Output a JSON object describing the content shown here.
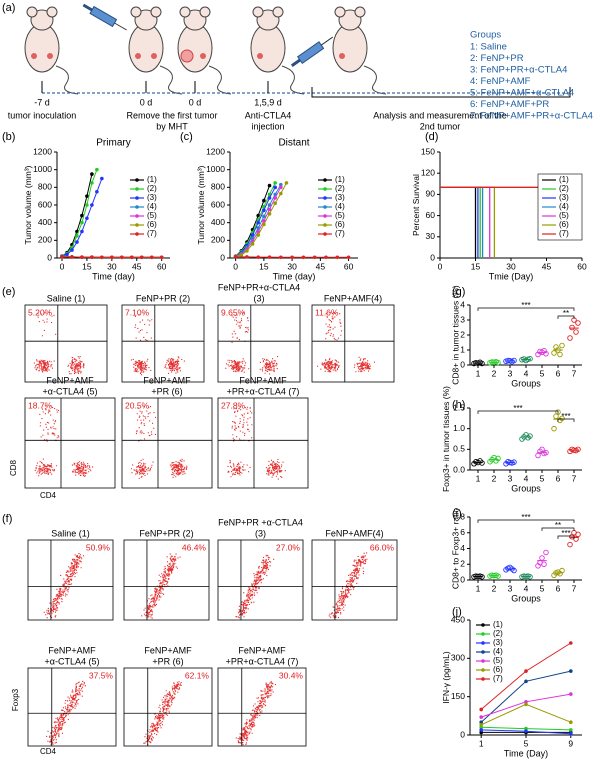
{
  "panel_a": {
    "label": "(a)",
    "timeline": [
      {
        "day": "-7 d",
        "lines": [
          "tumor inoculation"
        ]
      },
      {
        "day": "0 d"
      },
      {
        "day": "0 d"
      },
      {
        "day": "1,5,9 d",
        "lines": [
          "Anti-CTLA4",
          "injection"
        ]
      }
    ],
    "removal": [
      "Remove the first tumor",
      "by MHT"
    ],
    "analysis": [
      "Analysis and measurement of the",
      "2nd tumor"
    ],
    "groups_title": "Groups",
    "groups": [
      "1: Saline",
      "2: FeNP+PR",
      "3: FeNP+PR+α-CTLA4",
      "4: FeNP+AMF",
      "5: FeNP+AMF+α-CTLA4",
      "6: FeNP+AMF+PR",
      "7: FeNP+AMF+PR+α-CTLA4"
    ]
  },
  "flow_e": {
    "label": "(e)",
    "y_label": "CD8",
    "x_label": "CD4",
    "plots": [
      {
        "lines": [
          "Saline (1)"
        ],
        "percent": "5.20%"
      },
      {
        "lines": [
          "FeNP+PR (2)"
        ],
        "percent": "7.10%"
      },
      {
        "lines": [
          "FeNP+PR+α-CTLA4",
          "(3)"
        ],
        "percent": "9.65%"
      },
      {
        "lines": [
          "FeNP+AMF(4)"
        ],
        "percent": "11.6%"
      },
      {
        "lines": [
          "FeNP+AMF",
          "+α-CTLA4 (5)"
        ],
        "percent": "18.7%"
      },
      {
        "lines": [
          "FeNP+AMF",
          "+PR (6)"
        ],
        "percent": "20.5%"
      },
      {
        "lines": [
          "FeNP+AMF",
          "+PR+α-CTLA4 (7)"
        ],
        "percent": "27.8%"
      }
    ]
  },
  "flow_f": {
    "label": "(f)",
    "y_label": "Foxp3",
    "x_label": "CD4",
    "plots": [
      {
        "lines": [
          "Saline (1)"
        ],
        "percent": "50.9%"
      },
      {
        "lines": [
          "FeNP+PR (2)"
        ],
        "percent": "46.4%"
      },
      {
        "lines": [
          "FeNP+PR +α-CTLA4",
          "(3)"
        ],
        "percent": "27.0%"
      },
      {
        "lines": [
          "FeNP+AMF(4)"
        ],
        "percent": "66.0%"
      },
      {
        "lines": [
          "FeNP+AMF",
          "+α-CTLA4 (5)"
        ],
        "percent": "37.5%"
      },
      {
        "lines": [
          "FeNP+AMF",
          "+PR (6)"
        ],
        "percent": "62.1%"
      },
      {
        "lines": [
          "FeNP+AMF",
          "+PR+α-CTLA4 (7)"
        ],
        "percent": "30.4%"
      }
    ]
  },
  "chart_data": [
    {
      "type": "line",
      "label": "(b)",
      "title": "Primary",
      "x_label": "Time (day)",
      "y_label": "Tumor volume (mm³)",
      "xlim": [
        -3,
        65
      ],
      "xticks": [
        0,
        15,
        30,
        45,
        60
      ],
      "ylim": [
        0,
        1200
      ],
      "yticks": [
        0,
        200,
        400,
        600,
        800,
        1000,
        1200
      ],
      "markers": true,
      "legend": "right",
      "series": [
        {
          "name": "(1)",
          "color": "#000000",
          "x": [
            0,
            3,
            6,
            9,
            12,
            15,
            18
          ],
          "values": [
            20,
            60,
            150,
            300,
            480,
            700,
            950
          ]
        },
        {
          "name": "(2)",
          "color": "#22cc22",
          "x": [
            0,
            3,
            6,
            9,
            12,
            15,
            18,
            21
          ],
          "values": [
            20,
            50,
            120,
            250,
            400,
            600,
            850,
            1000
          ]
        },
        {
          "name": "(3)",
          "color": "#2233ff",
          "x": [
            0,
            3,
            6,
            9,
            12,
            15,
            18,
            21,
            24
          ],
          "values": [
            20,
            40,
            90,
            180,
            300,
            450,
            600,
            750,
            900
          ]
        },
        {
          "name": "(4)",
          "color": "#2288cc",
          "x": [
            0,
            6,
            12,
            18,
            24,
            30,
            36,
            42,
            48,
            54,
            60
          ],
          "values": [
            15,
            12,
            10,
            10,
            8,
            8,
            8,
            8,
            8,
            8,
            8
          ]
        },
        {
          "name": "(5)",
          "color": "#dd33dd",
          "x": [
            0,
            6,
            12,
            18,
            24,
            30,
            36,
            42,
            48,
            54,
            60
          ],
          "values": [
            15,
            12,
            10,
            10,
            8,
            8,
            8,
            8,
            8,
            8,
            8
          ]
        },
        {
          "name": "(6)",
          "color": "#999900",
          "x": [
            0,
            6,
            12,
            18,
            24,
            30,
            36,
            42,
            48,
            54,
            60
          ],
          "values": [
            15,
            12,
            10,
            10,
            8,
            8,
            8,
            8,
            8,
            8,
            8
          ]
        },
        {
          "name": "(7)",
          "color": "#dd2222",
          "x": [
            0,
            6,
            12,
            18,
            24,
            30,
            36,
            42,
            48,
            54,
            60
          ],
          "values": [
            15,
            12,
            10,
            10,
            8,
            8,
            8,
            8,
            8,
            8,
            8
          ]
        }
      ]
    },
    {
      "type": "line",
      "label": "(c)",
      "title": "Distant",
      "x_label": "Time (day)",
      "y_label": "Tumor volume (mm³)",
      "xlim": [
        -3,
        65
      ],
      "xticks": [
        0,
        15,
        30,
        45,
        60
      ],
      "ylim": [
        0,
        1200
      ],
      "yticks": [
        0,
        200,
        400,
        600,
        800,
        1000,
        1200
      ],
      "markers": true,
      "legend": "right",
      "series": [
        {
          "name": "(1)",
          "color": "#000000",
          "x": [
            0,
            3,
            6,
            9,
            12,
            15,
            18
          ],
          "values": [
            20,
            80,
            180,
            320,
            480,
            650,
            820
          ]
        },
        {
          "name": "(2)",
          "color": "#22cc22",
          "x": [
            0,
            3,
            6,
            9,
            12,
            15,
            18,
            21
          ],
          "values": [
            20,
            70,
            160,
            290,
            430,
            580,
            720,
            850
          ]
        },
        {
          "name": "(3)",
          "color": "#2233ff",
          "x": [
            0,
            3,
            6,
            9,
            12,
            15,
            18,
            21
          ],
          "values": [
            20,
            60,
            140,
            260,
            400,
            540,
            680,
            800
          ]
        },
        {
          "name": "(4)",
          "color": "#2288cc",
          "x": [
            0,
            3,
            6,
            9,
            12,
            15,
            18,
            21,
            24
          ],
          "values": [
            20,
            50,
            120,
            220,
            340,
            470,
            600,
            720,
            830
          ]
        },
        {
          "name": "(5)",
          "color": "#dd33dd",
          "x": [
            0,
            3,
            6,
            9,
            12,
            15,
            18,
            21,
            24
          ],
          "values": [
            20,
            40,
            100,
            190,
            300,
            420,
            550,
            680,
            800
          ]
        },
        {
          "name": "(6)",
          "color": "#999900",
          "x": [
            0,
            3,
            6,
            9,
            12,
            15,
            18,
            21,
            24,
            27
          ],
          "values": [
            20,
            30,
            80,
            160,
            260,
            380,
            500,
            620,
            730,
            850
          ]
        },
        {
          "name": "(7)",
          "color": "#dd2222",
          "x": [
            0,
            6,
            12,
            18,
            24,
            30,
            36,
            42,
            48,
            54,
            60
          ],
          "values": [
            15,
            12,
            10,
            10,
            8,
            8,
            8,
            8,
            8,
            8,
            8
          ]
        }
      ]
    },
    {
      "type": "line",
      "label": "(d)",
      "x_label": "Tmie (Day)",
      "y_label": "Percent Survival",
      "xlim": [
        0,
        60
      ],
      "xticks": [
        0,
        15,
        30,
        45,
        60
      ],
      "ylim": [
        0,
        150
      ],
      "yticks": [
        0,
        30,
        60,
        90,
        120,
        150
      ],
      "markers": false,
      "legend": "right",
      "legend_box": true,
      "series": [
        {
          "name": "(1)",
          "color": "#000000",
          "x": [
            0,
            15,
            15
          ],
          "values": [
            100,
            100,
            0
          ]
        },
        {
          "name": "(2)",
          "color": "#22cc22",
          "x": [
            0,
            17,
            17
          ],
          "values": [
            100,
            100,
            0
          ]
        },
        {
          "name": "(3)",
          "color": "#2233ff",
          "x": [
            0,
            16,
            16
          ],
          "values": [
            100,
            100,
            0
          ]
        },
        {
          "name": "(4)",
          "color": "#2288cc",
          "x": [
            0,
            18,
            18
          ],
          "values": [
            100,
            100,
            0
          ]
        },
        {
          "name": "(5)",
          "color": "#dd33dd",
          "x": [
            0,
            21,
            21
          ],
          "values": [
            100,
            100,
            0
          ]
        },
        {
          "name": "(6)",
          "color": "#999900",
          "x": [
            0,
            23,
            23
          ],
          "values": [
            100,
            100,
            0
          ]
        },
        {
          "name": "(7)",
          "color": "#dd2222",
          "x": [
            0,
            60
          ],
          "values": [
            100,
            100
          ]
        }
      ]
    },
    {
      "type": "dot",
      "label": "(g)",
      "x_label": "Groups",
      "y_label": "CD8+ in tumor tissues (%)",
      "ylim": [
        0,
        4
      ],
      "yticks": [
        0,
        1,
        2,
        3,
        4
      ],
      "categories": [
        "1",
        "2",
        "3",
        "4",
        "5",
        "6",
        "7"
      ],
      "colors": [
        "#000000",
        "#22cc22",
        "#2233ff",
        "#1a8a5a",
        "#dd33dd",
        "#999900",
        "#dd2222"
      ],
      "values": [
        [
          0.1,
          0.15,
          0.12,
          0.18,
          0.1
        ],
        [
          0.15,
          0.2,
          0.18,
          0.22,
          0.16
        ],
        [
          0.25,
          0.3,
          0.28,
          0.22,
          0.3
        ],
        [
          0.35,
          0.4,
          0.3,
          0.38,
          0.42
        ],
        [
          0.7,
          0.9,
          0.85,
          0.95,
          0.75
        ],
        [
          0.8,
          1.2,
          1.0,
          0.7,
          1.3
        ],
        [
          1.8,
          2.5,
          3.0,
          2.2,
          2.8
        ]
      ],
      "means": [
        0.13,
        0.18,
        0.27,
        0.37,
        0.83,
        1.0,
        2.46
      ],
      "annotations": [
        {
          "text": "***",
          "from": "1",
          "to": "7"
        },
        {
          "text": "**",
          "from": "6",
          "to": "7"
        }
      ]
    },
    {
      "type": "dot",
      "label": "(h)",
      "x_label": "Groups",
      "y_label": "Foxp3+ in tumor tissues (%)",
      "ylim": [
        0,
        1.5
      ],
      "yticks": [
        {
          "value": 0,
          "label": "0.0"
        },
        0.5,
        {
          "value": 1,
          "label": "1.0"
        },
        1.5
      ],
      "categories": [
        "1",
        "2",
        "3",
        "4",
        "5",
        "6",
        "7"
      ],
      "colors": [
        "#000000",
        "#22cc22",
        "#2233ff",
        "#1a8a5a",
        "#dd33dd",
        "#999900",
        "#dd2222"
      ],
      "values": [
        [
          0.15,
          0.2,
          0.18,
          0.22,
          0.17
        ],
        [
          0.2,
          0.25,
          0.3,
          0.22,
          0.28
        ],
        [
          0.15,
          0.2,
          0.18,
          0.17,
          0.19
        ],
        [
          0.75,
          0.8,
          0.85,
          0.78,
          0.82
        ],
        [
          0.35,
          0.45,
          0.5,
          0.4,
          0.42
        ],
        [
          1.0,
          1.3,
          1.4,
          1.2,
          1.25
        ],
        [
          0.45,
          0.5,
          0.48,
          0.47,
          0.5
        ]
      ],
      "means": [
        0.18,
        0.25,
        0.18,
        0.8,
        0.42,
        1.23,
        0.48
      ],
      "annotations": [
        {
          "text": "***",
          "from": "1",
          "to": "6"
        },
        {
          "text": "***",
          "from": "6",
          "to": "7"
        }
      ]
    },
    {
      "type": "dot",
      "label": "(i)",
      "x_label": "Groups",
      "y_label": "CD8+ to Foxp3+ ratio",
      "ylim": [
        0,
        8
      ],
      "yticks": [
        0,
        2,
        4,
        6,
        8
      ],
      "categories": [
        "1",
        "2",
        "3",
        "4",
        "5",
        "6",
        "7"
      ],
      "colors": [
        "#000000",
        "#22cc22",
        "#2233ff",
        "#1a8a5a",
        "#dd33dd",
        "#999900",
        "#dd2222"
      ],
      "values": [
        [
          0.4,
          0.5,
          0.45,
          0.5,
          0.4
        ],
        [
          0.5,
          0.6,
          0.55,
          0.6,
          0.5
        ],
        [
          1.3,
          1.5,
          1.6,
          1.4,
          1.2
        ],
        [
          0.4,
          0.5,
          0.45,
          0.5,
          0.4
        ],
        [
          1.8,
          2.2,
          2.8,
          2.0,
          3.5
        ],
        [
          0.6,
          0.9,
          1.0,
          0.8,
          1.2
        ],
        [
          4.5,
          5.5,
          6.0,
          5.2,
          5.8
        ]
      ],
      "means": [
        0.45,
        0.55,
        1.4,
        0.45,
        2.46,
        0.9,
        5.4
      ],
      "annotations": [
        {
          "text": "***",
          "from": "1",
          "to": "7"
        },
        {
          "text": "**",
          "from": "5",
          "to": "7"
        },
        {
          "text": "***",
          "from": "6",
          "to": "7"
        }
      ]
    },
    {
      "type": "line",
      "label": "(j)",
      "x_label": "Time (Day)",
      "y_label": "IFN-γ (pg/mL)",
      "xlim": [
        0,
        10
      ],
      "xticks": [
        1,
        5,
        9
      ],
      "ylim": [
        0,
        450
      ],
      "yticks": [
        0,
        150,
        300,
        450
      ],
      "markers": true,
      "legend": "upper left",
      "series": [
        {
          "name": "(1)",
          "color": "#000000",
          "x": [
            1,
            5,
            9
          ],
          "values": [
            10,
            10,
            10
          ]
        },
        {
          "name": "(2)",
          "color": "#22cc22",
          "x": [
            1,
            5,
            9
          ],
          "values": [
            30,
            25,
            20
          ]
        },
        {
          "name": "(3)",
          "color": "#2233ff",
          "x": [
            1,
            5,
            9
          ],
          "values": [
            20,
            15,
            5
          ]
        },
        {
          "name": "(4)",
          "color": "#114488",
          "x": [
            1,
            5,
            9
          ],
          "values": [
            50,
            210,
            250
          ]
        },
        {
          "name": "(5)",
          "color": "#dd33dd",
          "x": [
            1,
            5,
            9
          ],
          "values": [
            70,
            130,
            160
          ]
        },
        {
          "name": "(6)",
          "color": "#999900",
          "x": [
            1,
            5,
            9
          ],
          "values": [
            40,
            120,
            50
          ]
        },
        {
          "name": "(7)",
          "color": "#dd2222",
          "x": [
            1,
            5,
            9
          ],
          "values": [
            100,
            250,
            360
          ]
        }
      ]
    }
  ]
}
